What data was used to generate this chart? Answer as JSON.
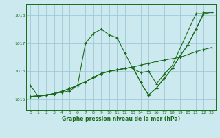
{
  "bg_color": "#cde9f0",
  "grid_color": "#9ec8d8",
  "line_color": "#1a6b1a",
  "title": "Graphe pression niveau de la mer (hPa)",
  "xlim": [
    -0.5,
    23.5
  ],
  "ylim": [
    1014.6,
    1018.4
  ],
  "yticks": [
    1015,
    1016,
    1017,
    1018
  ],
  "xticks": [
    0,
    1,
    2,
    3,
    4,
    5,
    6,
    7,
    8,
    9,
    10,
    11,
    12,
    13,
    14,
    15,
    16,
    17,
    18,
    19,
    20,
    21,
    22,
    23
  ],
  "series": [
    {
      "x": [
        0,
        1,
        2,
        3,
        4,
        5,
        6,
        7,
        8,
        9,
        10,
        11,
        12,
        13,
        14,
        15,
        16,
        17,
        18,
        21,
        22
      ],
      "y": [
        1015.5,
        1015.1,
        1015.15,
        1015.2,
        1015.25,
        1015.3,
        1015.5,
        1017.0,
        1017.35,
        1017.5,
        1017.3,
        1017.2,
        1016.65,
        1016.1,
        1015.95,
        1016.0,
        1015.55,
        1015.9,
        1016.2,
        1018.05,
        1018.05
      ]
    },
    {
      "x": [
        0,
        1,
        2,
        3,
        4,
        5,
        6,
        7,
        8,
        9,
        10,
        11,
        12,
        13,
        14,
        15,
        16,
        17,
        18,
        19,
        20,
        21,
        22,
        23
      ],
      "y": [
        1015.1,
        1015.12,
        1015.15,
        1015.2,
        1015.28,
        1015.38,
        1015.5,
        1015.62,
        1015.78,
        1015.92,
        1016.0,
        1016.05,
        1016.1,
        1016.15,
        1016.22,
        1016.28,
        1016.35,
        1016.4,
        1016.45,
        1016.5,
        1016.6,
        1016.7,
        1016.78,
        1016.85
      ]
    },
    {
      "x": [
        0,
        1,
        2,
        3,
        4,
        5,
        6,
        7,
        8,
        9,
        10,
        11,
        12,
        13,
        14,
        15,
        16,
        17,
        18,
        19,
        20,
        21,
        22,
        23
      ],
      "y": [
        1015.1,
        1015.12,
        1015.15,
        1015.2,
        1015.28,
        1015.38,
        1015.5,
        1015.62,
        1015.78,
        1015.92,
        1016.0,
        1016.05,
        1016.1,
        1016.15,
        1015.6,
        1015.15,
        1015.4,
        1015.75,
        1016.1,
        1016.55,
        1016.95,
        1017.5,
        1018.1,
        1018.1
      ]
    },
    {
      "x": [
        0,
        1,
        2,
        3,
        4,
        5,
        6,
        7,
        8,
        9,
        10,
        11,
        12,
        13,
        14,
        15,
        16,
        17,
        18,
        19,
        20,
        21,
        22,
        23
      ],
      "y": [
        1015.1,
        1015.12,
        1015.15,
        1015.2,
        1015.28,
        1015.38,
        1015.5,
        1015.62,
        1015.78,
        1015.92,
        1016.0,
        1016.05,
        1016.1,
        1016.15,
        1015.6,
        1015.15,
        1015.4,
        1015.75,
        1016.1,
        1016.55,
        1016.95,
        1017.5,
        1018.05,
        1018.1
      ]
    }
  ]
}
